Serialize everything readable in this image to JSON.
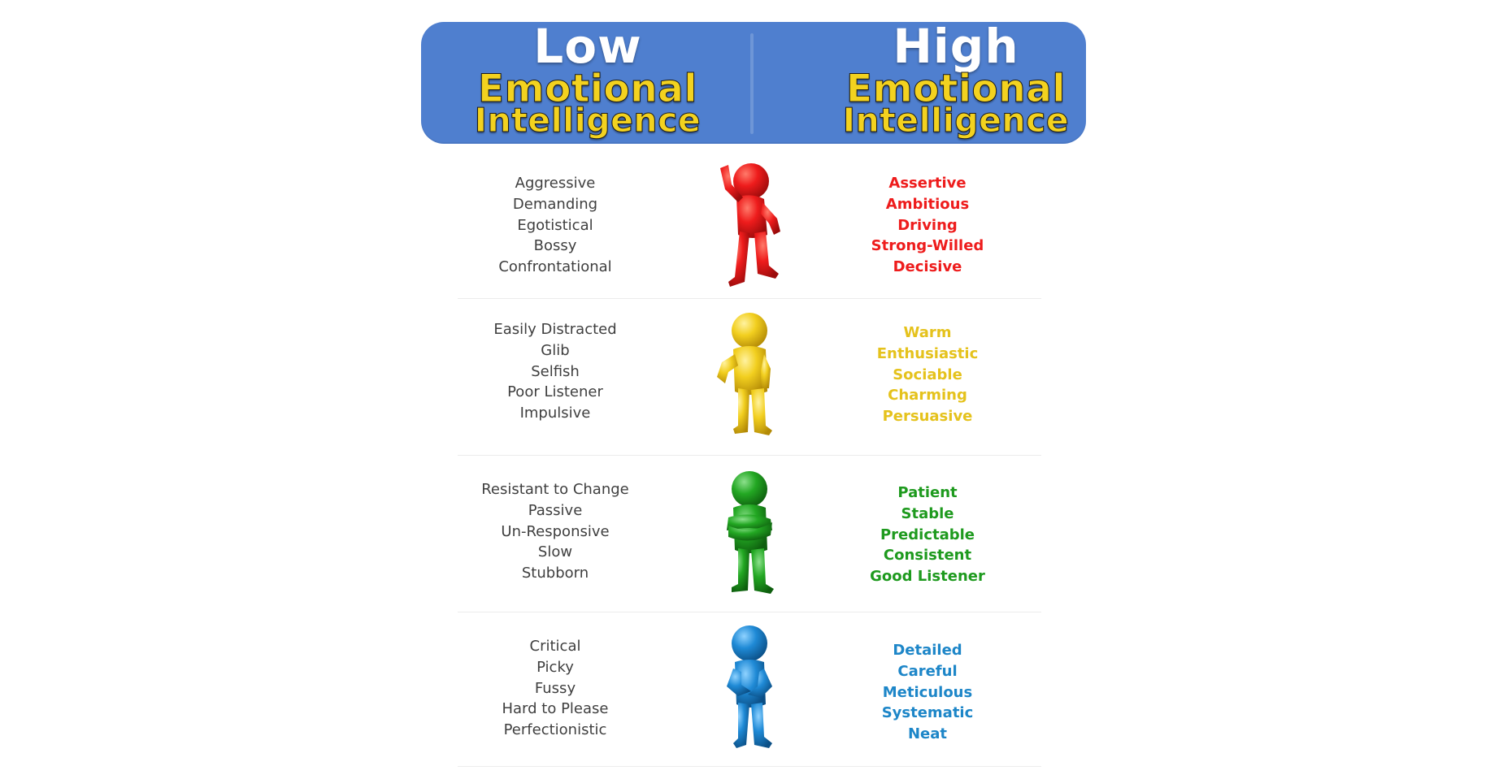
{
  "header": {
    "left": {
      "main": "Low",
      "line1": "Emotional",
      "line2": "Intelligence"
    },
    "right": {
      "main": "High",
      "line1": "Emotional",
      "line2": "Intelligence"
    }
  },
  "rows": [
    {
      "figure": "red-person-figure",
      "color": "#ee1c1c",
      "low": [
        "Aggressive",
        "Demanding",
        "Egotistical",
        "Bossy",
        "Confrontational"
      ],
      "high": [
        "Assertive",
        "Ambitious",
        "Driving",
        "Strong-Willed",
        "Decisive"
      ]
    },
    {
      "figure": "yellow-person-figure",
      "color": "#e5c21c",
      "low": [
        "Easily Distracted",
        "Glib",
        "Selfish",
        "Poor Listener",
        "Impulsive"
      ],
      "high": [
        "Warm",
        "Enthusiastic",
        "Sociable",
        "Charming",
        "Persuasive"
      ]
    },
    {
      "figure": "green-person-figure",
      "color": "#1e9a1e",
      "low": [
        "Resistant to Change",
        "Passive",
        "Un-Responsive",
        "Slow",
        "Stubborn"
      ],
      "high": [
        "Patient",
        "Stable",
        "Predictable",
        "Consistent",
        "Good Listener"
      ]
    },
    {
      "figure": "blue-person-figure",
      "color": "#1d86c8",
      "low": [
        "Critical",
        "Picky",
        "Fussy",
        "Hard to Please",
        "Perfectionistic"
      ],
      "high": [
        "Detailed",
        "Careful",
        "Meticulous",
        "Systematic",
        "Neat"
      ]
    }
  ]
}
